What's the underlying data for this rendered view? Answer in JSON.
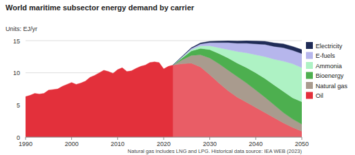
{
  "chart_data": {
    "type": "area",
    "title": "World maritime subsector energy demand by carrier",
    "subtitle": "Units: EJ/yr",
    "annotations": [
      "Natural gas includes LNG and LPG. Historical data source: IEA WEB (2023)"
    ],
    "stacked": true,
    "grid": true,
    "legend": "right",
    "xlim": [
      1990,
      2050
    ],
    "xticks": [
      1990,
      2000,
      2010,
      2020,
      2030,
      2040,
      2050
    ],
    "ylim": [
      0,
      15
    ],
    "yticks": [
      0,
      5,
      10,
      15
    ],
    "x": [
      1990,
      1991,
      1992,
      1993,
      1994,
      1995,
      1996,
      1997,
      1998,
      1999,
      2000,
      2001,
      2002,
      2003,
      2004,
      2005,
      2006,
      2007,
      2008,
      2009,
      2010,
      2011,
      2012,
      2013,
      2014,
      2015,
      2016,
      2017,
      2018,
      2019,
      2020,
      2021,
      2022,
      2024,
      2026,
      2028,
      2030,
      2032,
      2034,
      2036,
      2038,
      2040,
      2042,
      2044,
      2046,
      2048,
      2050
    ],
    "series": [
      {
        "name": "Oil",
        "color": "#e3303b",
        "values": [
          6.3,
          6.5,
          6.8,
          6.7,
          6.8,
          7.3,
          7.4,
          7.5,
          7.9,
          8.2,
          8.5,
          8.2,
          8.4,
          8.7,
          9.3,
          9.6,
          10.0,
          10.4,
          10.2,
          9.9,
          10.5,
          10.8,
          10.2,
          10.3,
          10.7,
          11.0,
          11.2,
          11.6,
          11.7,
          11.6,
          10.6,
          11.0,
          11.2,
          11.4,
          11.5,
          10.9,
          9.7,
          8.4,
          7.2,
          6.2,
          5.4,
          4.6,
          3.8,
          3.0,
          2.2,
          1.5,
          0.9
        ]
      },
      {
        "name": "Natural gas",
        "color": "#a99b8e",
        "values": [
          null,
          null,
          null,
          null,
          null,
          null,
          null,
          null,
          null,
          null,
          null,
          null,
          null,
          null,
          null,
          null,
          null,
          null,
          null,
          null,
          null,
          null,
          null,
          null,
          null,
          null,
          null,
          null,
          null,
          null,
          null,
          null,
          0,
          0.6,
          1.2,
          1.9,
          2.6,
          3.0,
          3.2,
          3.2,
          3.0,
          2.7,
          2.4,
          2.0,
          1.6,
          1.3,
          1.1
        ]
      },
      {
        "name": "Bioenergy",
        "color": "#4daf4f",
        "values": [
          null,
          null,
          null,
          null,
          null,
          null,
          null,
          null,
          null,
          null,
          null,
          null,
          null,
          null,
          null,
          null,
          null,
          null,
          null,
          null,
          null,
          null,
          null,
          null,
          null,
          null,
          null,
          null,
          null,
          null,
          null,
          null,
          0,
          0.3,
          0.7,
          1.0,
          1.3,
          1.6,
          1.9,
          2.1,
          2.4,
          2.7,
          2.9,
          3.1,
          3.3,
          3.3,
          3.5
        ]
      },
      {
        "name": "Ammonia",
        "color": "#aef2c4",
        "values": [
          null,
          null,
          null,
          null,
          null,
          null,
          null,
          null,
          null,
          null,
          null,
          null,
          null,
          null,
          null,
          null,
          null,
          null,
          null,
          null,
          null,
          null,
          null,
          null,
          null,
          null,
          null,
          null,
          null,
          null,
          null,
          null,
          0,
          0.1,
          0.2,
          0.4,
          0.6,
          0.9,
          1.3,
          1.8,
          2.3,
          2.8,
          3.4,
          4.0,
          4.7,
          5.3,
          5.3
        ]
      },
      {
        "name": "E-fuels",
        "color": "#b6b6ec",
        "values": [
          null,
          null,
          null,
          null,
          null,
          null,
          null,
          null,
          null,
          null,
          null,
          null,
          null,
          null,
          null,
          null,
          null,
          null,
          null,
          null,
          null,
          null,
          null,
          null,
          null,
          null,
          null,
          null,
          null,
          null,
          null,
          null,
          0,
          0.1,
          0.2,
          0.3,
          0.5,
          0.8,
          1.1,
          1.3,
          1.5,
          1.7,
          1.9,
          2.0,
          2.1,
          2.1,
          2.2
        ]
      },
      {
        "name": "Electricity",
        "color": "#1f2b56",
        "values": [
          null,
          null,
          null,
          null,
          null,
          null,
          null,
          null,
          null,
          null,
          null,
          null,
          null,
          null,
          null,
          null,
          null,
          null,
          null,
          null,
          null,
          null,
          null,
          null,
          null,
          null,
          null,
          null,
          null,
          null,
          null,
          null,
          0,
          0.05,
          0.1,
          0.15,
          0.2,
          0.25,
          0.3,
          0.35,
          0.4,
          0.45,
          0.5,
          0.55,
          0.6,
          0.6,
          0.6
        ]
      }
    ]
  }
}
